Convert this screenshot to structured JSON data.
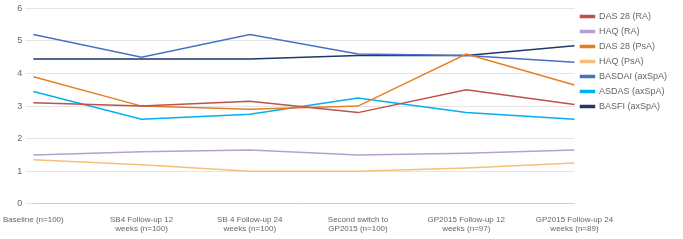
{
  "chart_data": {
    "type": "line",
    "categories": [
      "Baseline (n=100)",
      "SB4 Follow-up 12\nweeks (n=100)",
      "SB 4 Follow-up 24\nweeks (n=100)",
      "Second switch to\nGP2015 (n=100)",
      "GP2015 Follow-up 12\nweeks (n=97)",
      "GP2015 Follow-up 24\nweeks (n=89)"
    ],
    "series": [
      {
        "name": "DAS 28 (RA)",
        "color": "#c0504d",
        "values": [
          3.1,
          3.0,
          3.15,
          2.8,
          3.5,
          3.05
        ]
      },
      {
        "name": "HAQ (RA)",
        "color": "#b8a0cc",
        "values": [
          1.5,
          1.6,
          1.65,
          1.5,
          1.55,
          1.65
        ]
      },
      {
        "name": "DAS 28 (PsA)",
        "color": "#e67e22",
        "values": [
          3.9,
          3.0,
          2.9,
          3.0,
          4.6,
          3.65
        ]
      },
      {
        "name": "HAQ (PsA)",
        "color": "#f5c07a",
        "values": [
          1.35,
          1.2,
          1.0,
          1.0,
          1.1,
          1.25
        ]
      },
      {
        "name": "BASDAI (axSpA)",
        "color": "#4472c4",
        "values": [
          5.2,
          4.5,
          5.2,
          4.6,
          4.55,
          4.35
        ]
      },
      {
        "name": "ASDAS (axSpA)",
        "color": "#00b0f0",
        "values": [
          3.45,
          2.6,
          2.75,
          3.25,
          2.8,
          2.6
        ]
      },
      {
        "name": "BASFI (axSpA)",
        "color": "#1f3864",
        "values": [
          4.45,
          4.45,
          4.45,
          4.55,
          4.55,
          4.85
        ]
      }
    ],
    "ylim": [
      0,
      6
    ],
    "yticks": [
      0,
      1,
      2,
      3,
      4,
      5,
      6
    ],
    "grid": true,
    "legend": "right"
  }
}
